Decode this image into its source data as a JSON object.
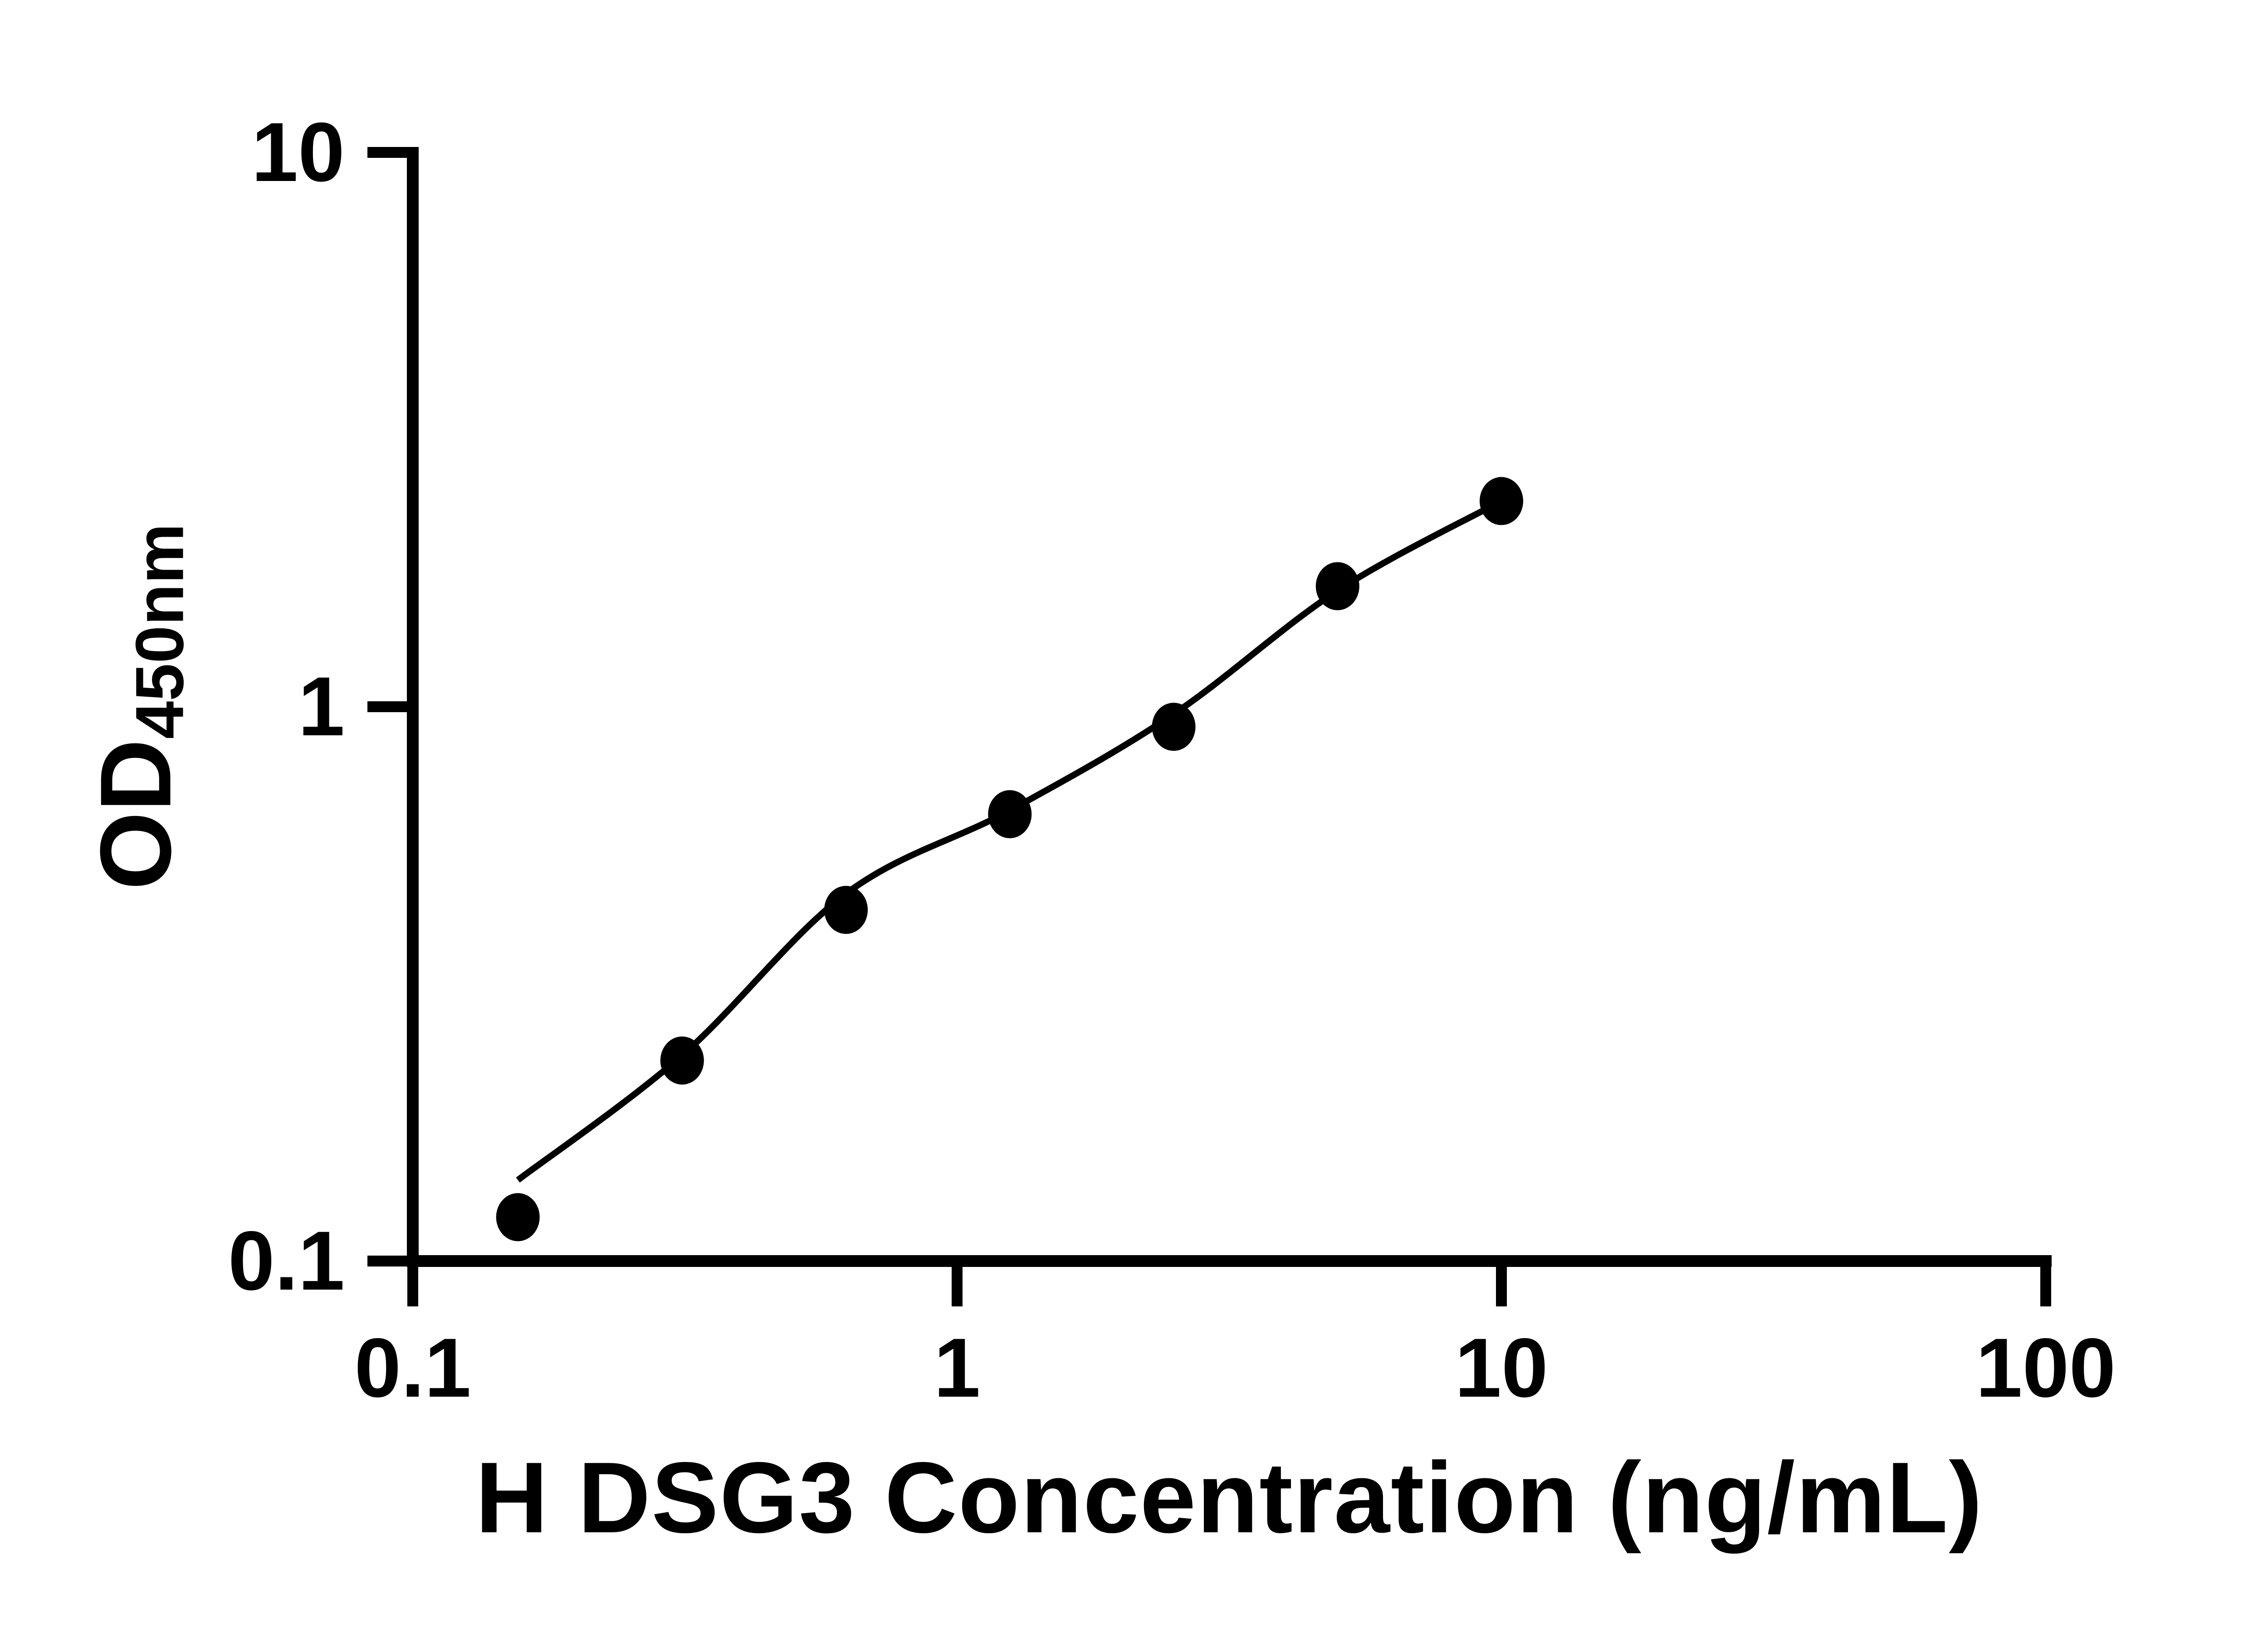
{
  "chart_data": {
    "type": "scatter",
    "title": "H DSG3 Concentration (ng/mL)",
    "ylabel_main": "OD",
    "ylabel_sub": "450nm",
    "x_scale": "log",
    "y_scale": "log",
    "xlim": [
      0.1,
      100
    ],
    "ylim": [
      0.1,
      10
    ],
    "grid": false,
    "legend": "none",
    "x_ticks": [
      {
        "value": 0.1,
        "label": "0.1"
      },
      {
        "value": 1,
        "label": "1"
      },
      {
        "value": 10,
        "label": "10"
      },
      {
        "value": 100,
        "label": "100"
      }
    ],
    "y_ticks": [
      {
        "value": 10,
        "label": "10"
      },
      {
        "value": 1,
        "label": "1"
      },
      {
        "value": 0.1,
        "label": "0.1"
      }
    ],
    "series": [
      {
        "name": "standard curve points",
        "marker": "filled-circle",
        "color": "#000000",
        "points": [
          {
            "x": 0.156,
            "y": 0.12
          },
          {
            "x": 0.3125,
            "y": 0.23
          },
          {
            "x": 0.625,
            "y": 0.43
          },
          {
            "x": 1.25,
            "y": 0.64
          },
          {
            "x": 2.5,
            "y": 0.92
          },
          {
            "x": 5,
            "y": 1.65
          },
          {
            "x": 10,
            "y": 2.35
          }
        ]
      }
    ],
    "fit_line": {
      "name": "fitted curve",
      "color": "#000000",
      "points": [
        {
          "x": 0.156,
          "y": 0.14
        },
        {
          "x": 0.3125,
          "y": 0.235
        },
        {
          "x": 0.625,
          "y": 0.46
        },
        {
          "x": 1.25,
          "y": 0.65
        },
        {
          "x": 2.5,
          "y": 0.97
        },
        {
          "x": 5,
          "y": 1.62
        },
        {
          "x": 10,
          "y": 2.35
        }
      ]
    },
    "colors": {
      "foreground": "#000000",
      "background": "#ffffff"
    }
  }
}
